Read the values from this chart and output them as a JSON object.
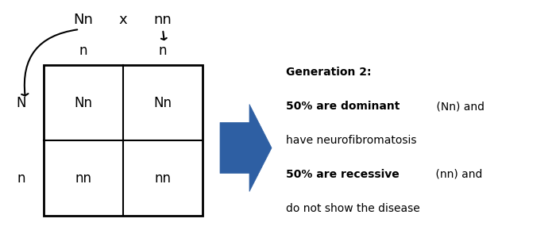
{
  "background_color": "#ffffff",
  "grid_labels": [
    [
      "Nn",
      "Nn"
    ],
    [
      "nn",
      "nn"
    ]
  ],
  "col_headers": [
    "n",
    "n"
  ],
  "row_headers": [
    "N",
    "n"
  ],
  "parent1_label": "Nn",
  "parent2_label": "nn",
  "cross_symbol": "x",
  "arrow_color": "#2E5FA3",
  "text_color": "#000000",
  "generation_title": "Generation 2:",
  "line1_bold": "50% are dominant",
  "line1_normal": " (Nn) and",
  "line2": "have neurofibromatosis",
  "line3_bold": "50% are recessive",
  "line3_normal": " (nn) and",
  "line4": "do not show the disease",
  "fontsize_cell": 12,
  "fontsize_header": 12,
  "fontsize_parent": 13,
  "fontsize_text": 10
}
